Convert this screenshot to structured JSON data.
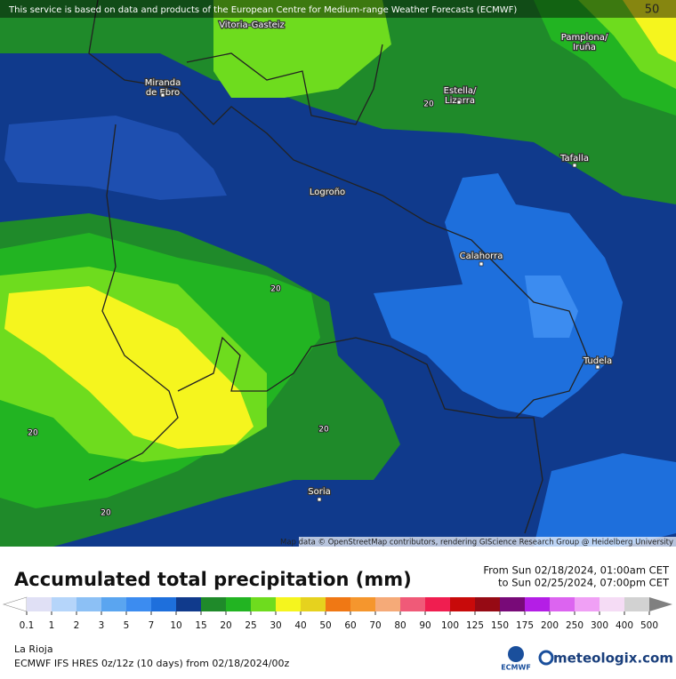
{
  "banner": "This service is based on data and products of the European Centre for Medium-range Weather Forecasts (ECMWF)",
  "corner_value": "50",
  "cities": [
    [
      "Vitoria-Gasteiz"
    ],
    [
      "Pamplona/",
      "Iruña"
    ],
    [
      "Miranda",
      "de Ebro"
    ],
    [
      "Estella/",
      "Lizarra"
    ],
    [
      "Tafalla"
    ],
    [
      "Logroño"
    ],
    [
      "Calahorra"
    ],
    [
      "Tudela"
    ],
    [
      "Soria"
    ]
  ],
  "contour_labels": [
    "20",
    "20",
    "20",
    "20",
    "20"
  ],
  "attribution": "Map data © OpenStreetMap contributors, rendering GIScience Research Group @ Heidelberg University",
  "title": "Accumulated total precipitation (mm)",
  "period": [
    "From Sun 02/18/2024, 01:00am CET",
    "to Sun 02/25/2024, 07:00pm CET"
  ],
  "colorbar": {
    "labels": [
      "0.1",
      "1",
      "2",
      "3",
      "5",
      "7",
      "10",
      "15",
      "20",
      "25",
      "30",
      "40",
      "50",
      "60",
      "70",
      "80",
      "90",
      "100",
      "125",
      "150",
      "175",
      "200",
      "250",
      "300",
      "400",
      "500"
    ],
    "colors": [
      "#ffffff",
      "#e0e0f5",
      "#b5d5fa",
      "#8cc0f5",
      "#5aa5f0",
      "#3c8cf0",
      "#1e6fdc",
      "#103a8c",
      "#1f8a2a",
      "#22b422",
      "#6edc1e",
      "#f5f51e",
      "#e6d21e",
      "#f07814",
      "#f5962d",
      "#f5aa78",
      "#f05a78",
      "#f01e50",
      "#c80a0a",
      "#960a14",
      "#780a78",
      "#b41ee6",
      "#dc64f0",
      "#f0a0f5",
      "#f5dcf5",
      "#d2d2d2",
      "#808080"
    ]
  },
  "region": "La Rioja",
  "model": "ECMWF IFS HRES 0z/12z (10 days) from  02/18/2024/00z",
  "logos": [
    "ECMWF",
    "meteologix.com"
  ]
}
